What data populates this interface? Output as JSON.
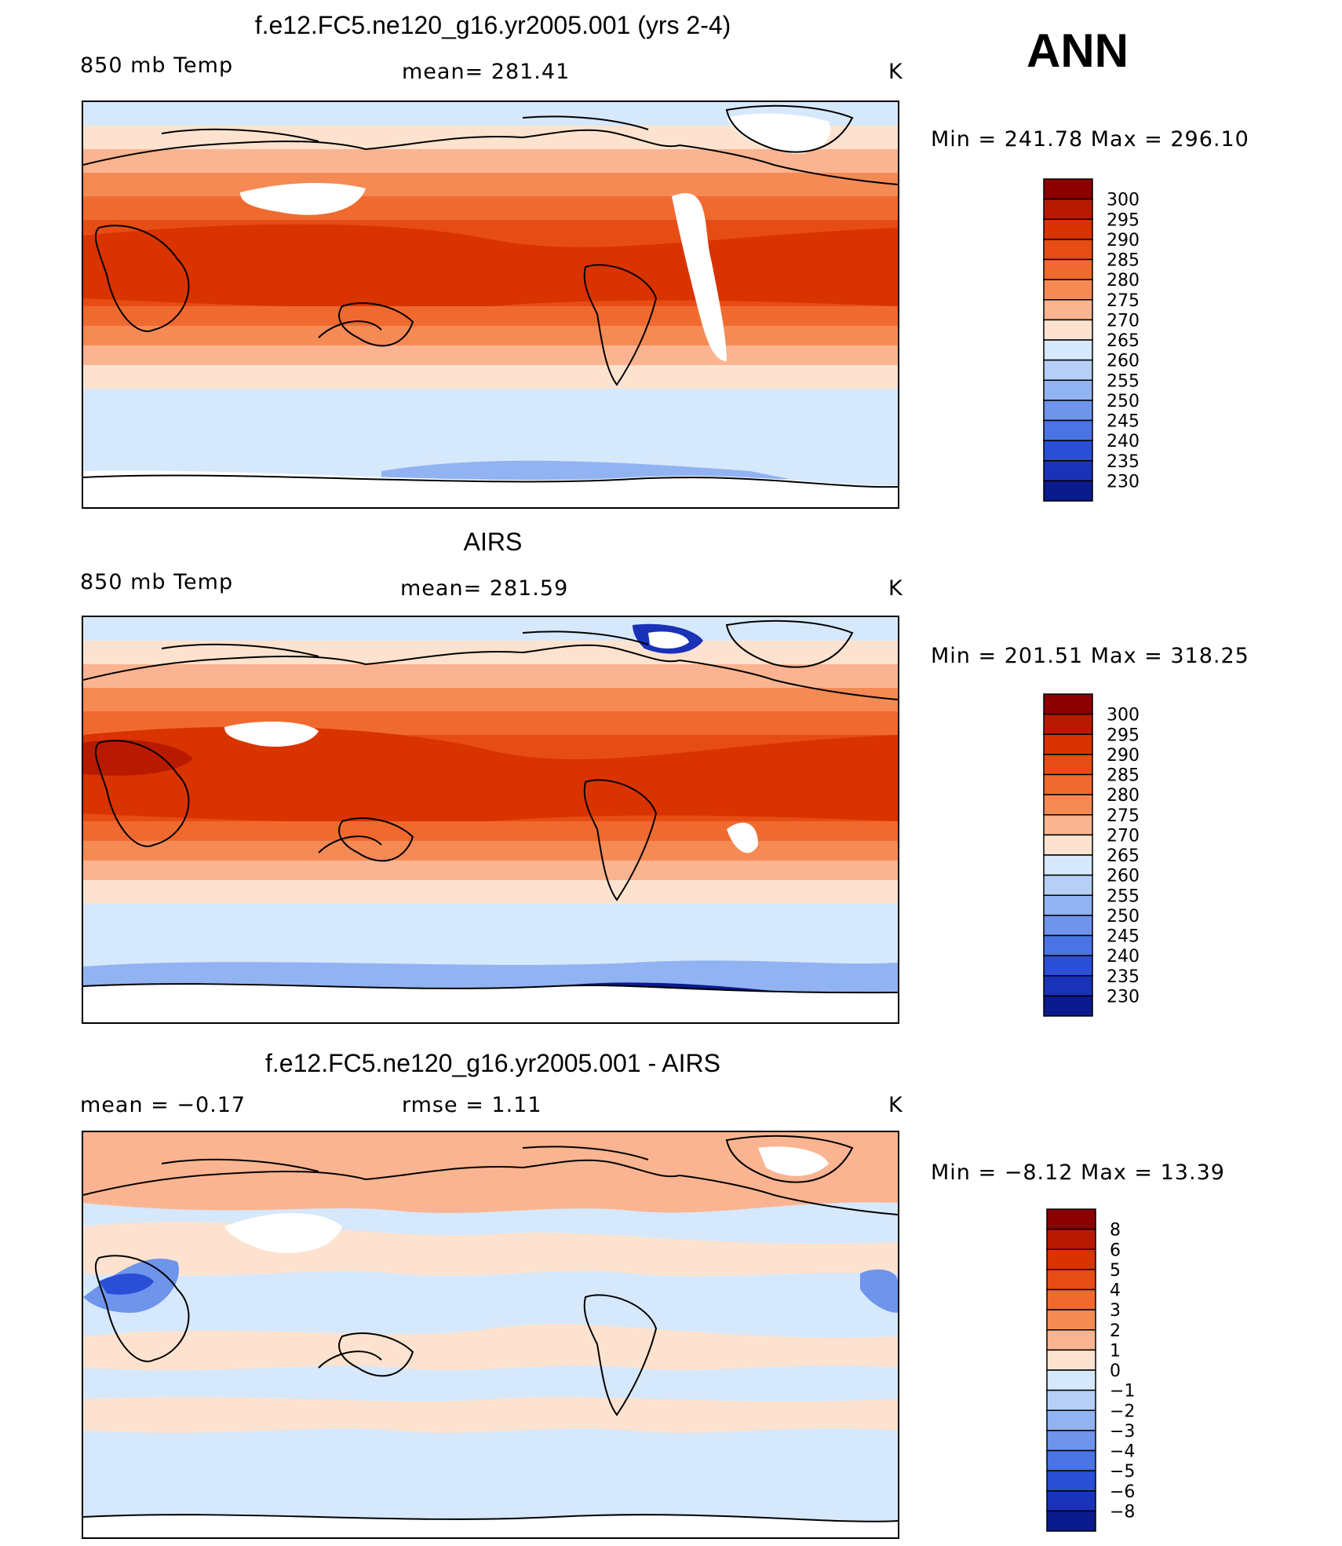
{
  "season": "ANN",
  "units": "K",
  "panels": [
    {
      "title": "f.e12.FC5.ne120_g16.yr2005.001 (yrs 2-4)",
      "left_label": "850 mb Temp",
      "center_label": "mean= 281.41",
      "right_label": "K",
      "min_max": "Min  =  241.78  Max  =  296.10"
    },
    {
      "title": "AIRS",
      "left_label": "850 mb Temp",
      "center_label": "mean= 281.59",
      "right_label": "K",
      "min_max": "Min  =  201.51  Max  =  318.25"
    },
    {
      "title": "f.e12.FC5.ne120_g16.yr2005.001 - AIRS",
      "left_label": "mean  =     −0.17",
      "center_label": "rmse  =     1.11",
      "right_label": "K",
      "min_max": "Min  =    −8.12  Max  =    13.39"
    }
  ],
  "colorbars": {
    "abs_labels": [
      "300",
      "295",
      "290",
      "285",
      "280",
      "275",
      "270",
      "265",
      "260",
      "255",
      "250",
      "245",
      "240",
      "235",
      "230"
    ],
    "abs_colors": [
      "#8c0000",
      "#b81a00",
      "#d93300",
      "#e64d14",
      "#f06a30",
      "#f58a55",
      "#fbb491",
      "#fde3cf",
      "#d6e8fb",
      "#b5cff7",
      "#92b3f2",
      "#6e94ec",
      "#4a73e6",
      "#2a4ed6",
      "#1a32b8",
      "#0b1a8c"
    ],
    "diff_labels": [
      "8",
      "6",
      "5",
      "4",
      "3",
      "2",
      "1",
      "0",
      "−1",
      "−2",
      "−3",
      "−4",
      "−5",
      "−6",
      "−8"
    ],
    "diff_colors": [
      "#8c0000",
      "#b81a00",
      "#d93300",
      "#e64d14",
      "#f06a30",
      "#f58a55",
      "#fbb491",
      "#fde3cf",
      "#d6e8fb",
      "#b5cff7",
      "#92b3f2",
      "#6e94ec",
      "#4a73e6",
      "#2a4ed6",
      "#1a32b8",
      "#0b1a8c"
    ]
  }
}
